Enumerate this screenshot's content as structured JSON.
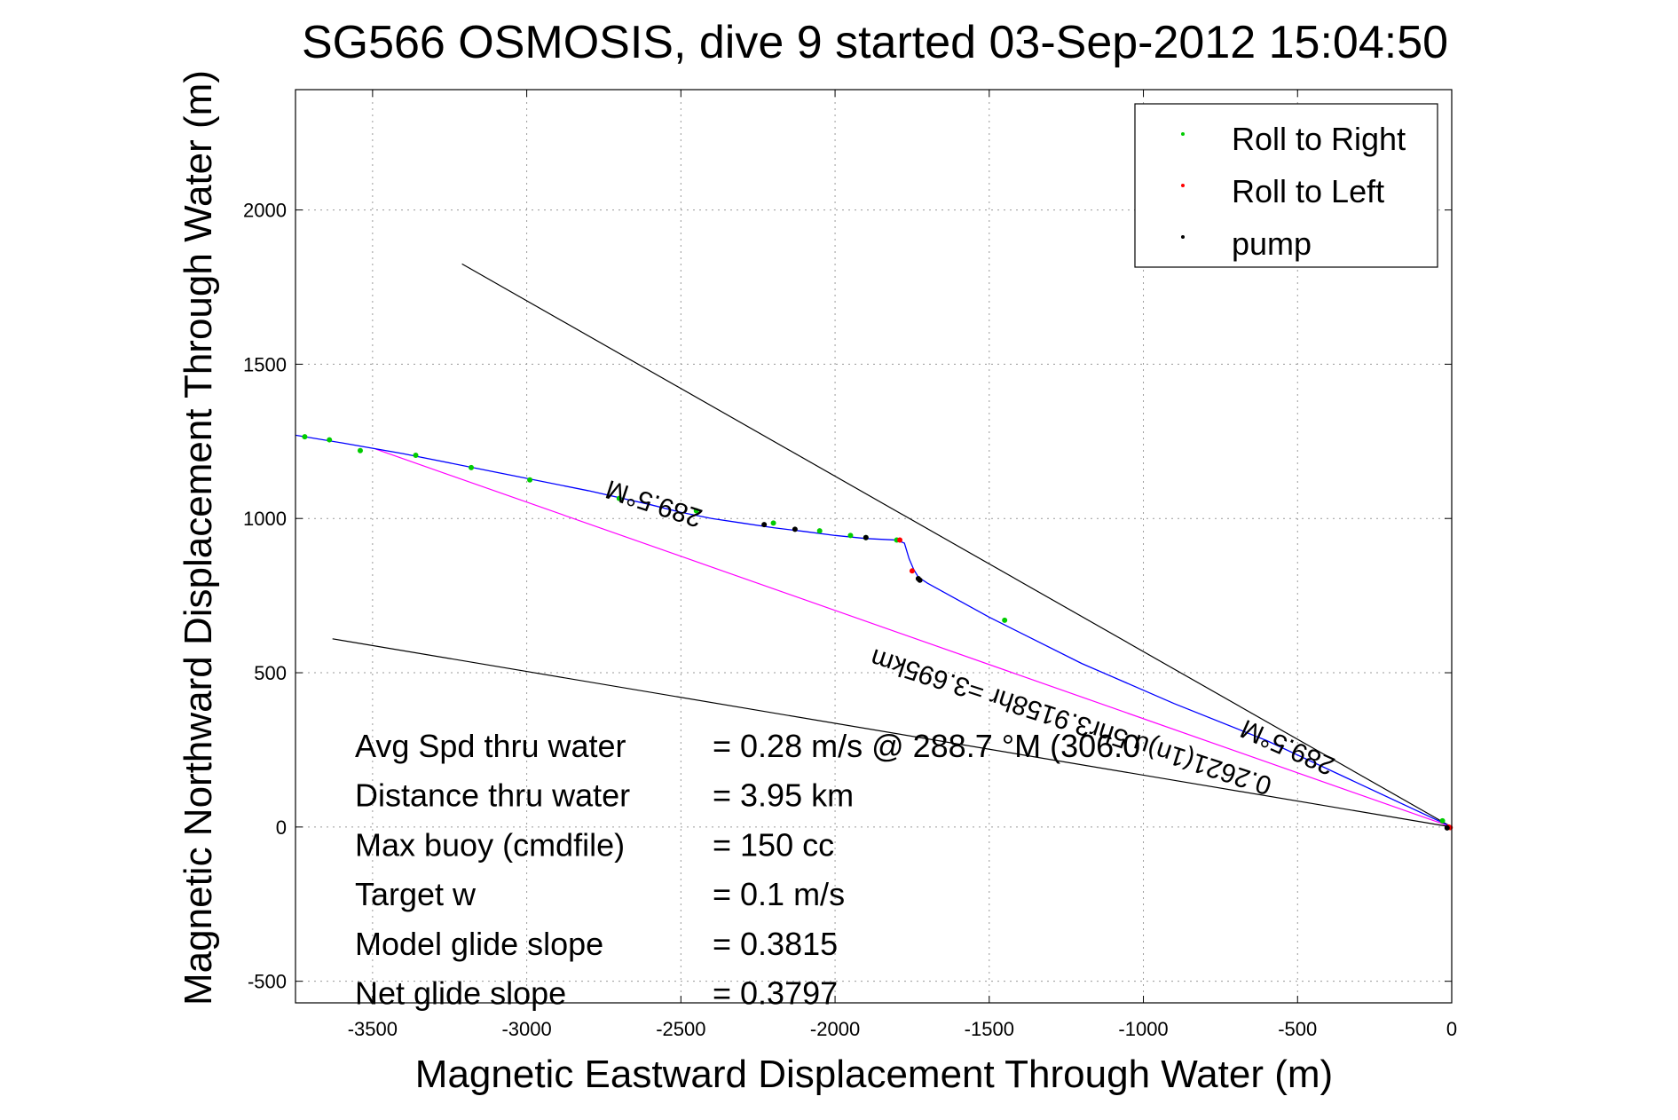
{
  "chart_data": {
    "type": "scatter",
    "title": "SG566 OSMOSIS, dive 9 started 03-Sep-2012 15:04:50",
    "xlabel": "Magnetic Eastward Displacement Through Water (m)",
    "ylabel": "Magnetic Northward Displacement Through Water (m)",
    "xlim": [
      -3750,
      0
    ],
    "ylim": [
      -570,
      2390
    ],
    "xticks": [
      -3500,
      -3000,
      -2500,
      -2000,
      -1500,
      -1000,
      -500,
      0
    ],
    "yticks": [
      -500,
      0,
      500,
      1000,
      1500,
      2000
    ],
    "xtick_labels": [
      "-3500",
      "-3000",
      "-2500",
      "-2000",
      "-1500",
      "-1000",
      "-500",
      "0"
    ],
    "ytick_labels": [
      "-500",
      "0",
      "500",
      "1000",
      "1500",
      "2000"
    ],
    "grid": true,
    "legend": {
      "position": "top-right",
      "entries": [
        {
          "label": "Roll to Right",
          "color": "#00cc00"
        },
        {
          "label": "Roll to Left",
          "color": "#ff0000"
        },
        {
          "label": "pump",
          "color": "#000000"
        }
      ]
    },
    "track": {
      "color": "#0000ff",
      "x": [
        0,
        -300,
        -600,
        -900,
        -1200,
        -1500,
        -1700,
        -1730,
        -1745,
        -1760,
        -1775,
        -1800,
        -1900,
        -2000,
        -2100,
        -2200,
        -2300,
        -2400,
        -2500,
        -2600,
        -2800,
        -3000,
        -3200,
        -3400,
        -3600,
        -3750
      ],
      "y": [
        0,
        140,
        280,
        400,
        530,
        680,
        790,
        810,
        835,
        870,
        920,
        930,
        935,
        945,
        958,
        970,
        985,
        1000,
        1020,
        1045,
        1090,
        1130,
        1170,
        1210,
        1245,
        1270
      ]
    },
    "roll_right": {
      "x": [
        -3720,
        -3640,
        -3540,
        -3360,
        -3180,
        -2990,
        -2700,
        -2450,
        -2200,
        -2050,
        -1950,
        -1900,
        -1800,
        -1450,
        -30
      ],
      "y": [
        1265,
        1255,
        1220,
        1205,
        1165,
        1125,
        1065,
        1025,
        985,
        960,
        945,
        938,
        930,
        670,
        20
      ]
    },
    "roll_left": {
      "x": [
        -1790,
        -1750,
        -5,
        -10
      ],
      "y": [
        930,
        830,
        -2,
        0
      ]
    },
    "pump": {
      "x": [
        -2230,
        -2130,
        -1900,
        -1730,
        -1725,
        -15
      ],
      "y": [
        980,
        965,
        938,
        805,
        800,
        -3
      ]
    },
    "lines": [
      {
        "color": "#000000",
        "x": [
          -3210,
          0
        ],
        "y": [
          1825,
          0
        ]
      },
      {
        "color": "#000000",
        "x": [
          -3630,
          0
        ],
        "y": [
          610,
          0
        ]
      },
      {
        "color": "#ff00ff",
        "x": [
          -3490,
          0
        ],
        "y": [
          1225,
          0
        ]
      }
    ],
    "annotations": {
      "heading_top": "289.5°M",
      "heading_right": "289.5°M",
      "distance": "0.2621(1n)u 5hr3.9158hr =3.695km"
    },
    "stats": [
      {
        "label": "Avg Spd thru water",
        "value": "=  0.28 m/s @ 288.7 °M (306.0"
      },
      {
        "label": "Distance thru water",
        "value": "=  3.95 km"
      },
      {
        "label": "Max buoy (cmdfile)",
        "value": "= 150 cc"
      },
      {
        "label": "Target w",
        "value": "= 0.1 m/s"
      },
      {
        "label": "Model glide slope",
        "value": "= 0.3815"
      },
      {
        "label": "Net glide slope",
        "value": "= 0.3797"
      }
    ]
  }
}
